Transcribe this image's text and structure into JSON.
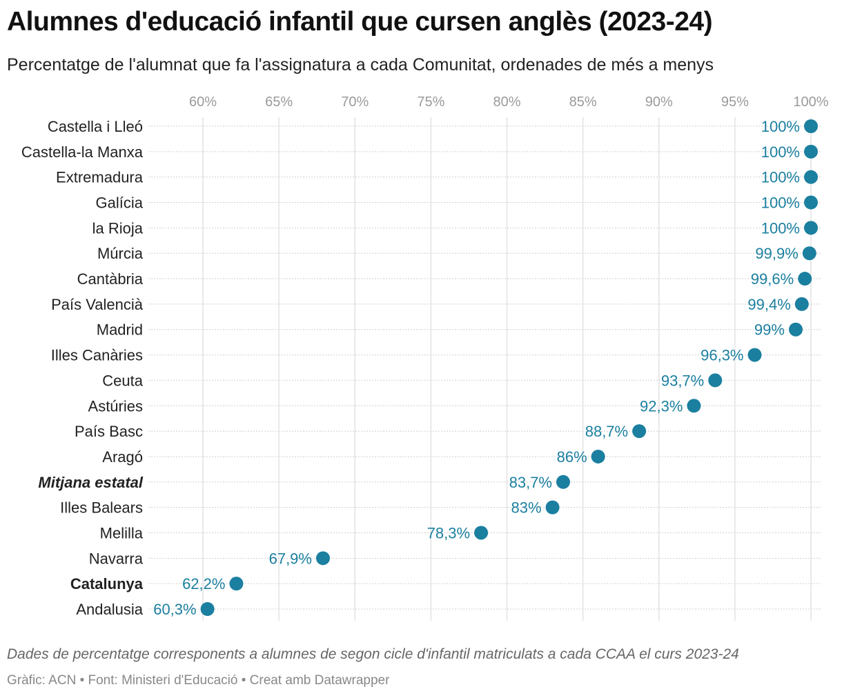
{
  "title": "Alumnes d'educació infantil que cursen anglès (2023-24)",
  "subtitle": "Percentatge de l'alumnat que fa l'assignatura a cada Comunitat, ordenades de més a menys",
  "footer": {
    "note": "Dades de percentatge corresponents a alumnes de segon cicle d'infantil matriculats a cada CCAA el curs 2023-24",
    "byline": "Gràfic: ACN • Font: Ministeri d'Educació • Creat amb Datawrapper"
  },
  "colors": {
    "dot": "#1b7fa0",
    "label": "#1b7fa0"
  },
  "chart_data": {
    "type": "scatter",
    "orientation": "dot-plot horizontal",
    "xlim": [
      60,
      100
    ],
    "xticks": [
      60,
      65,
      70,
      75,
      80,
      85,
      90,
      95,
      100
    ],
    "xtick_labels": [
      "60%",
      "65%",
      "70%",
      "75%",
      "80%",
      "85%",
      "90%",
      "95%",
      "100%"
    ],
    "xaxis_position": "top",
    "grid": true,
    "rows": [
      {
        "category": "Castella i Lleó",
        "value": 100,
        "label": "100%",
        "style": "normal"
      },
      {
        "category": "Castella-la Manxa",
        "value": 100,
        "label": "100%",
        "style": "normal"
      },
      {
        "category": "Extremadura",
        "value": 100,
        "label": "100%",
        "style": "normal"
      },
      {
        "category": "Galícia",
        "value": 100,
        "label": "100%",
        "style": "normal"
      },
      {
        "category": "la Rioja",
        "value": 100,
        "label": "100%",
        "style": "normal"
      },
      {
        "category": "Múrcia",
        "value": 99.9,
        "label": "99,9%",
        "style": "normal"
      },
      {
        "category": "Cantàbria",
        "value": 99.6,
        "label": "99,6%",
        "style": "normal"
      },
      {
        "category": "País Valencià",
        "value": 99.4,
        "label": "99,4%",
        "style": "normal"
      },
      {
        "category": "Madrid",
        "value": 99,
        "label": "99%",
        "style": "normal"
      },
      {
        "category": "Illes Canàries",
        "value": 96.3,
        "label": "96,3%",
        "style": "normal"
      },
      {
        "category": "Ceuta",
        "value": 93.7,
        "label": "93,7%",
        "style": "normal"
      },
      {
        "category": "Astúries",
        "value": 92.3,
        "label": "92,3%",
        "style": "normal"
      },
      {
        "category": "País Basc",
        "value": 88.7,
        "label": "88,7%",
        "style": "normal"
      },
      {
        "category": "Aragó",
        "value": 86,
        "label": "86%",
        "style": "normal"
      },
      {
        "category": "Mitjana estatal",
        "value": 83.7,
        "label": "83,7%",
        "style": "bold-italic"
      },
      {
        "category": "Illes Balears",
        "value": 83,
        "label": "83%",
        "style": "normal"
      },
      {
        "category": "Melilla",
        "value": 78.3,
        "label": "78,3%",
        "style": "normal"
      },
      {
        "category": "Navarra",
        "value": 67.9,
        "label": "67,9%",
        "style": "normal"
      },
      {
        "category": "Catalunya",
        "value": 62.2,
        "label": "62,2%",
        "style": "bold"
      },
      {
        "category": "Andalusia",
        "value": 60.3,
        "label": "60,3%",
        "style": "normal"
      }
    ]
  }
}
